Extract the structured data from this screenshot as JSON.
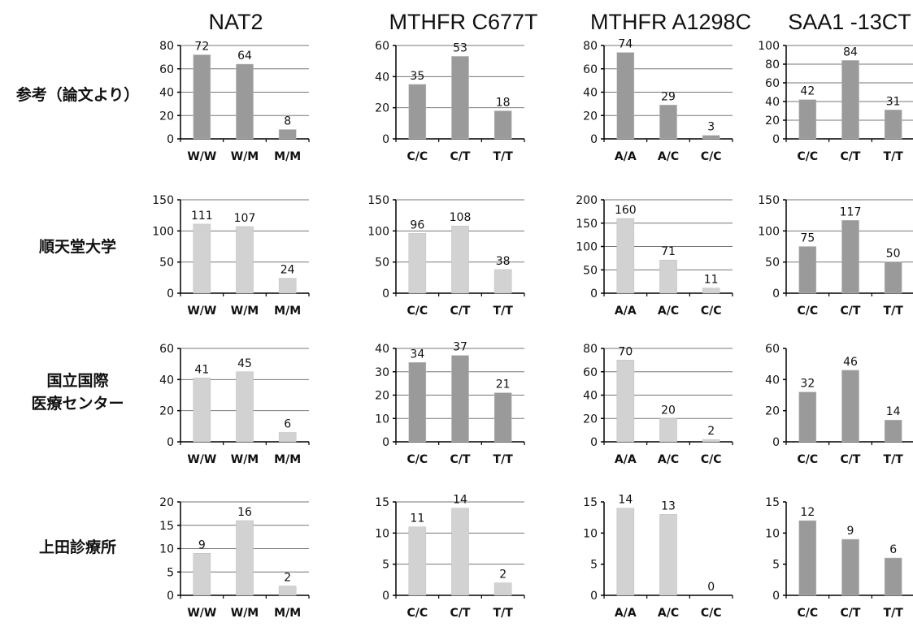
{
  "column_titles": [
    "NAT2",
    "MTHFR C677T",
    "MTHFR A1298C",
    "SAA1 -13CT"
  ],
  "row_labels": [
    [
      "参考（論文より）"
    ],
    [
      "順天堂大学"
    ],
    [
      "国立国際",
      "医療センター"
    ],
    [
      "上田診療所"
    ]
  ],
  "colors": {
    "bar_dark": "#9a9a9a",
    "bar_light": "#d2d2d2",
    "axis": "#000000",
    "grid": "#777777"
  },
  "chart_data": [
    {
      "type": "bar",
      "row": 0,
      "col": 0,
      "categories": [
        "W/W",
        "W/M",
        "M/M"
      ],
      "values": [
        72,
        64,
        8
      ],
      "ylim": [
        0,
        80
      ],
      "yticks": [
        0,
        20,
        40,
        60,
        80
      ],
      "color": "dark",
      "grid": true
    },
    {
      "type": "bar",
      "row": 0,
      "col": 1,
      "categories": [
        "C/C",
        "C/T",
        "T/T"
      ],
      "values": [
        35,
        53,
        18
      ],
      "ylim": [
        0,
        60
      ],
      "yticks": [
        0,
        20,
        40,
        60
      ],
      "color": "dark",
      "grid": true
    },
    {
      "type": "bar",
      "row": 0,
      "col": 2,
      "categories": [
        "A/A",
        "A/C",
        "C/C"
      ],
      "values": [
        74,
        29,
        3
      ],
      "ylim": [
        0,
        80
      ],
      "yticks": [
        0,
        20,
        40,
        60,
        80
      ],
      "color": "dark",
      "grid": true
    },
    {
      "type": "bar",
      "row": 0,
      "col": 3,
      "categories": [
        "C/C",
        "C/T",
        "T/T"
      ],
      "values": [
        42,
        84,
        31
      ],
      "ylim": [
        0,
        100
      ],
      "yticks": [
        0,
        20,
        40,
        60,
        80,
        100
      ],
      "color": "dark",
      "grid": true
    },
    {
      "type": "bar",
      "row": 1,
      "col": 0,
      "categories": [
        "W/W",
        "W/M",
        "M/M"
      ],
      "values": [
        111,
        107,
        24
      ],
      "ylim": [
        0,
        150
      ],
      "yticks": [
        0,
        50,
        100,
        150
      ],
      "color": "light",
      "grid": true
    },
    {
      "type": "bar",
      "row": 1,
      "col": 1,
      "categories": [
        "C/C",
        "C/T",
        "T/T"
      ],
      "values": [
        96,
        108,
        38
      ],
      "ylim": [
        0,
        150
      ],
      "yticks": [
        0,
        50,
        100,
        150
      ],
      "color": "light",
      "grid": true
    },
    {
      "type": "bar",
      "row": 1,
      "col": 2,
      "categories": [
        "A/A",
        "A/C",
        "C/C"
      ],
      "values": [
        160,
        71,
        11
      ],
      "ylim": [
        0,
        200
      ],
      "yticks": [
        0,
        50,
        100,
        150,
        200
      ],
      "color": "light",
      "grid": true
    },
    {
      "type": "bar",
      "row": 1,
      "col": 3,
      "categories": [
        "C/C",
        "C/T",
        "T/T"
      ],
      "values": [
        75,
        117,
        50
      ],
      "ylim": [
        0,
        150
      ],
      "yticks": [
        0,
        50,
        100,
        150
      ],
      "color": "dark",
      "grid": true
    },
    {
      "type": "bar",
      "row": 2,
      "col": 0,
      "categories": [
        "W/W",
        "W/M",
        "M/M"
      ],
      "values": [
        41,
        45,
        6
      ],
      "ylim": [
        0,
        60
      ],
      "yticks": [
        0,
        20,
        40,
        60
      ],
      "color": "light",
      "grid": true
    },
    {
      "type": "bar",
      "row": 2,
      "col": 1,
      "categories": [
        "C/C",
        "C/T",
        "T/T"
      ],
      "values": [
        34,
        37,
        21
      ],
      "ylim": [
        0,
        40
      ],
      "yticks": [
        0,
        10,
        20,
        30,
        40
      ],
      "color": "dark",
      "grid": true
    },
    {
      "type": "bar",
      "row": 2,
      "col": 2,
      "categories": [
        "A/A",
        "A/C",
        "C/C"
      ],
      "values": [
        70,
        20,
        2
      ],
      "ylim": [
        0,
        80
      ],
      "yticks": [
        0,
        20,
        40,
        60,
        80
      ],
      "color": "light",
      "grid": true
    },
    {
      "type": "bar",
      "row": 2,
      "col": 3,
      "categories": [
        "C/C",
        "C/T",
        "T/T"
      ],
      "values": [
        32,
        46,
        14
      ],
      "ylim": [
        0,
        60
      ],
      "yticks": [
        0,
        20,
        40,
        60
      ],
      "color": "dark",
      "grid": false
    },
    {
      "type": "bar",
      "row": 3,
      "col": 0,
      "categories": [
        "W/W",
        "W/M",
        "M/M"
      ],
      "values": [
        9,
        16,
        2
      ],
      "ylim": [
        0,
        20
      ],
      "yticks": [
        0,
        5,
        10,
        15,
        20
      ],
      "color": "light",
      "grid": true
    },
    {
      "type": "bar",
      "row": 3,
      "col": 1,
      "categories": [
        "C/C",
        "C/T",
        "T/T"
      ],
      "values": [
        11,
        14,
        2
      ],
      "ylim": [
        0,
        15
      ],
      "yticks": [
        0,
        5,
        10,
        15
      ],
      "color": "light",
      "grid": true
    },
    {
      "type": "bar",
      "row": 3,
      "col": 2,
      "categories": [
        "A/A",
        "A/C",
        "C/C"
      ],
      "values": [
        14,
        13,
        0
      ],
      "ylim": [
        0,
        15
      ],
      "yticks": [
        0,
        5,
        10,
        15
      ],
      "color": "light",
      "grid": false
    },
    {
      "type": "bar",
      "row": 3,
      "col": 3,
      "categories": [
        "C/C",
        "C/T",
        "T/T"
      ],
      "values": [
        12,
        9,
        6
      ],
      "ylim": [
        0,
        15
      ],
      "yticks": [
        0,
        5,
        10,
        15
      ],
      "color": "dark",
      "grid": false
    }
  ]
}
